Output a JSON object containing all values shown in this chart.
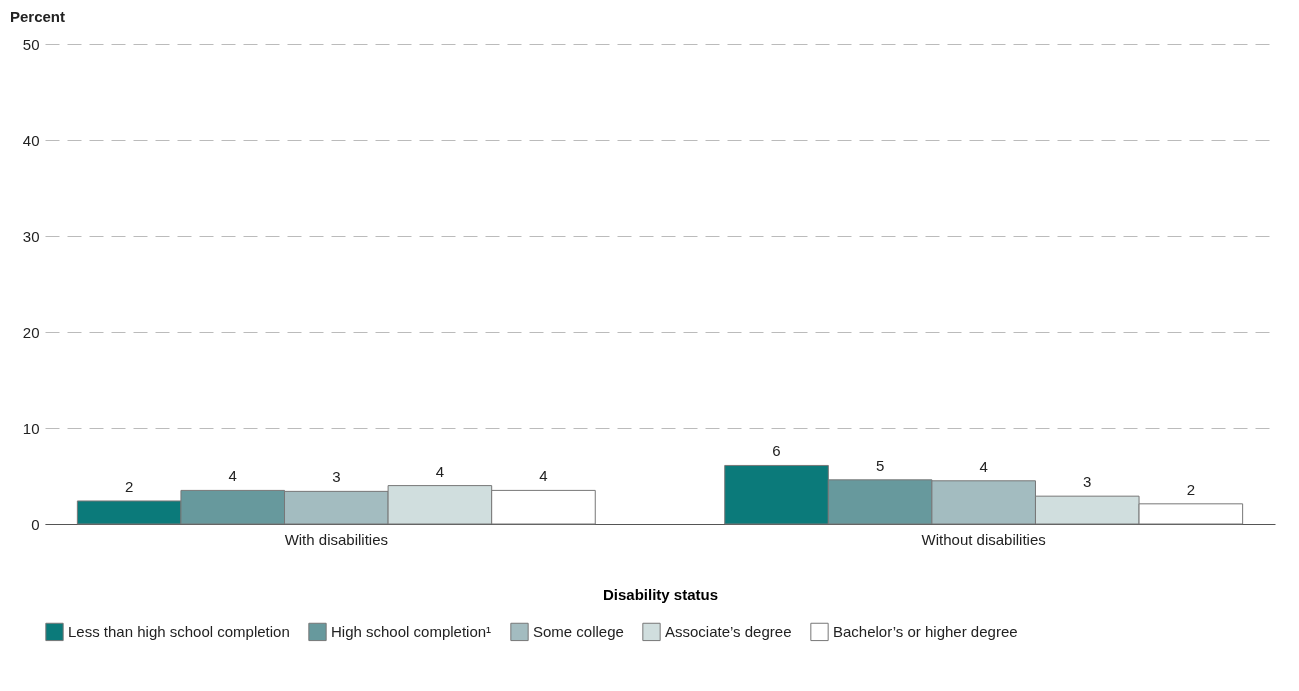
{
  "chart_data": {
    "type": "bar",
    "ylabel": "Percent",
    "xlabel": "Disability status",
    "categories": [
      "With disabilities",
      "Without disabilities"
    ],
    "series": [
      {
        "name": "Less than high school completion",
        "color": "#0b7a7a",
        "values": [
          2.4,
          6.1
        ],
        "value_labels": [
          "2",
          "6"
        ]
      },
      {
        "name": "High school completion¹",
        "color": "#67999d",
        "values": [
          3.5,
          4.6
        ],
        "value_labels": [
          "4",
          "5"
        ]
      },
      {
        "name": "Some college",
        "color": "#a3bcc0",
        "values": [
          3.4,
          4.5
        ],
        "value_labels": [
          "3",
          "4"
        ]
      },
      {
        "name": "Associate’s degree",
        "color": "#d0dede",
        "values": [
          4.0,
          2.9
        ],
        "value_labels": [
          "4",
          "3"
        ]
      },
      {
        "name": "Bachelor’s or higher degree",
        "color": "#ffffff",
        "values": [
          3.5,
          2.1
        ],
        "value_labels": [
          "4",
          "2"
        ]
      }
    ],
    "ylim": [
      0,
      50
    ],
    "yticks": [
      0,
      10,
      20,
      30,
      40,
      50
    ],
    "grid": "y",
    "legend": "bottom"
  }
}
